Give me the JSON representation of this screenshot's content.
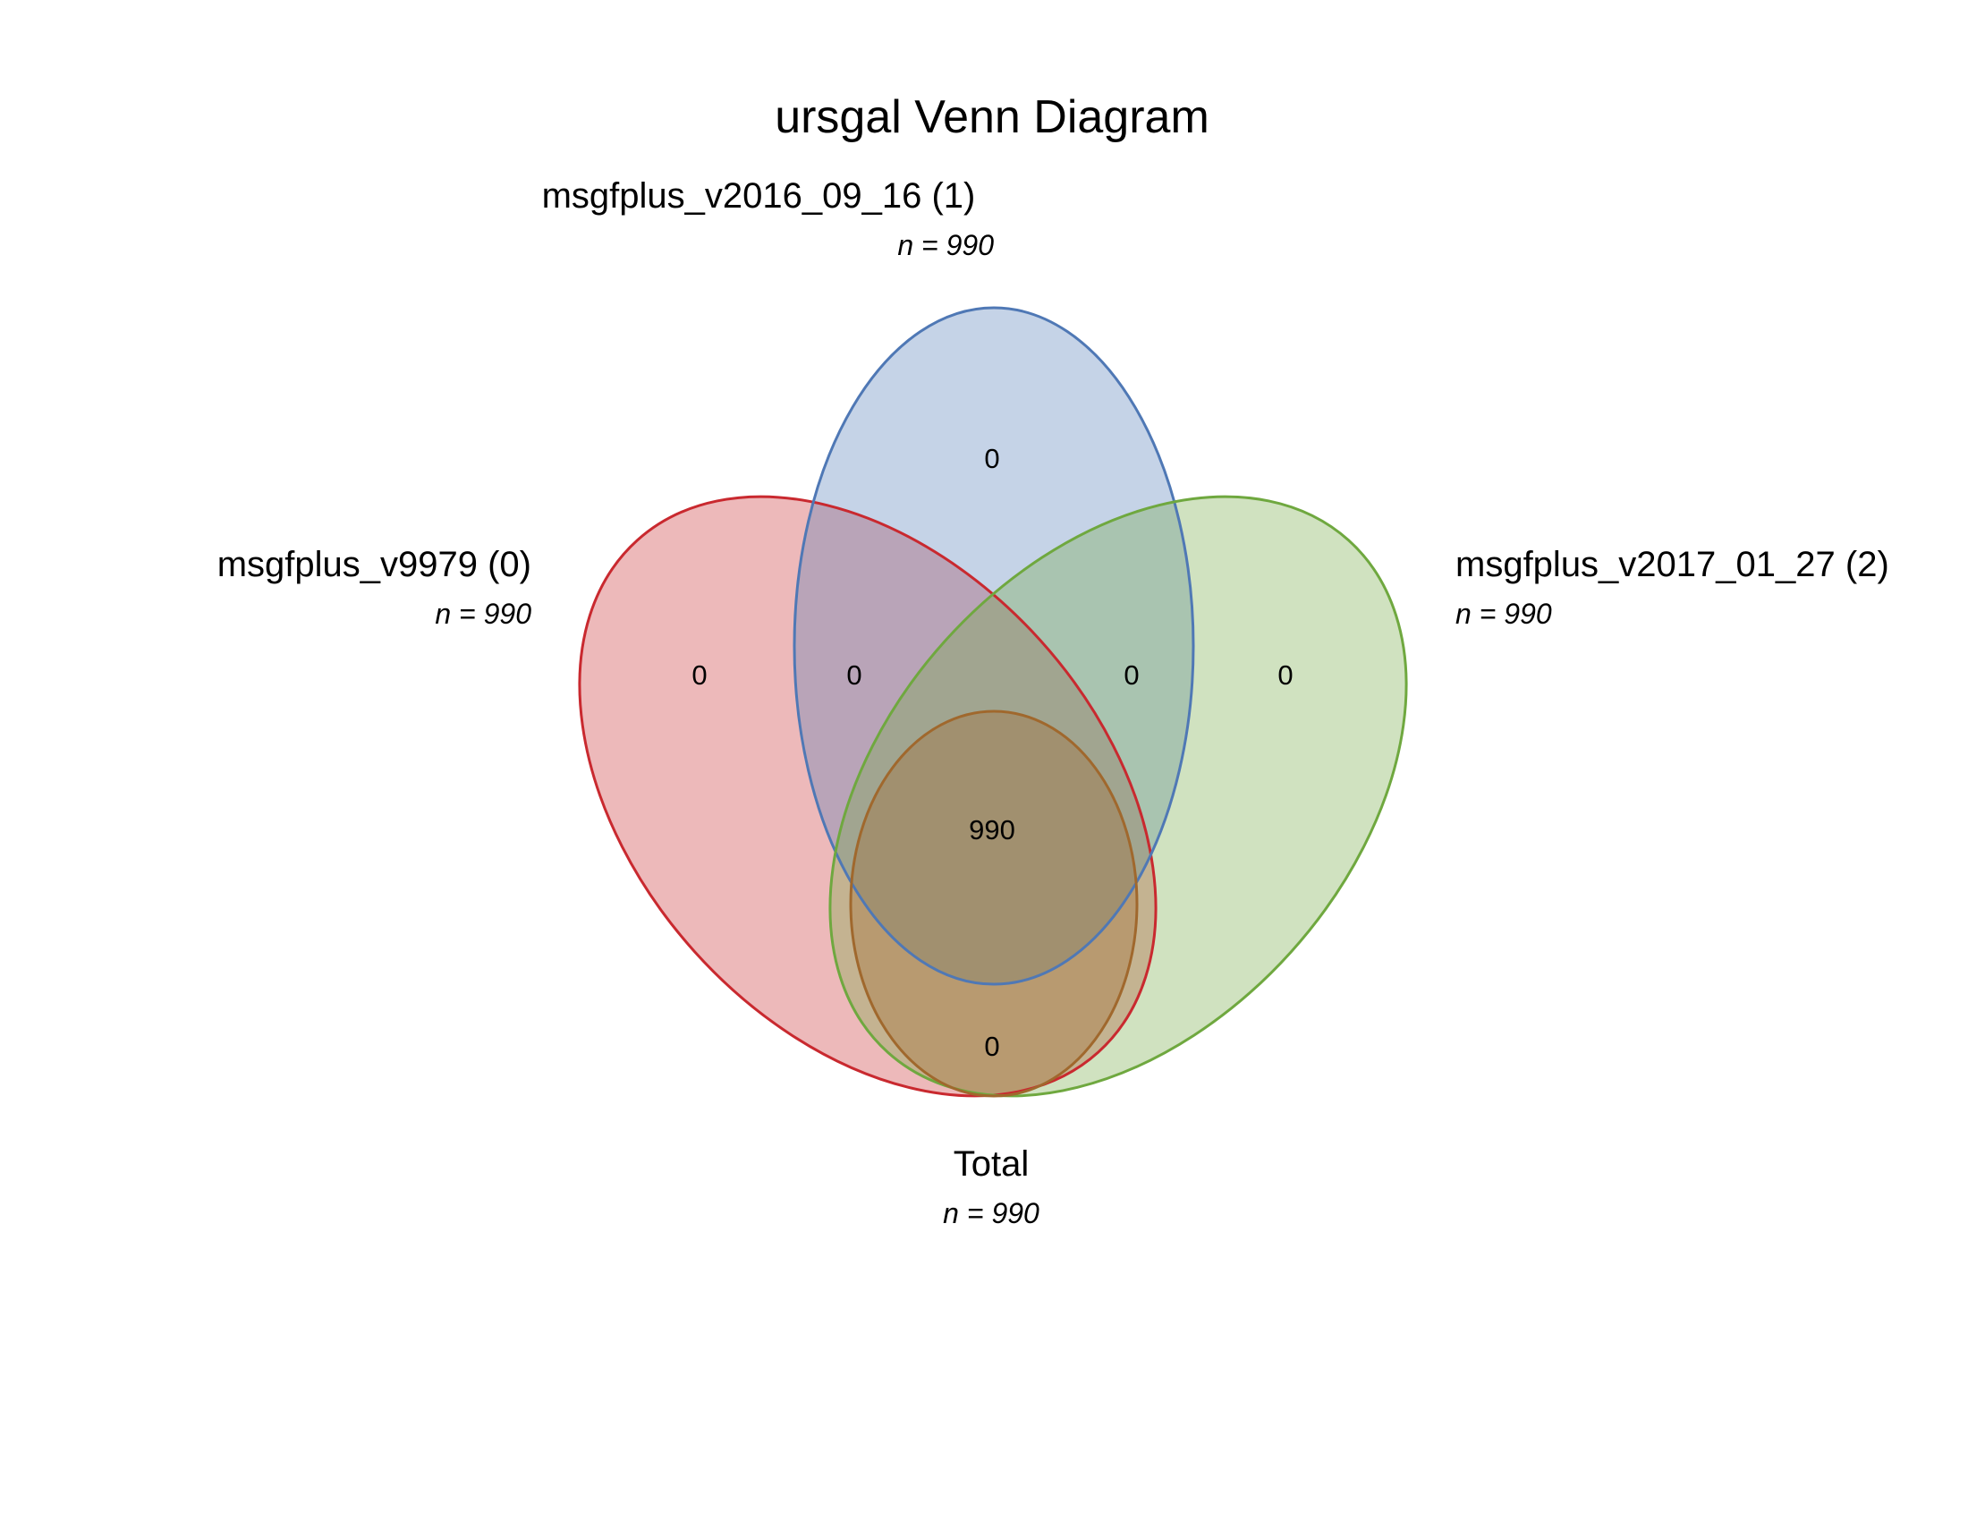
{
  "title": "ursgal Venn Diagram",
  "colors": {
    "set_a": "#c9292f",
    "set_b": "#4f78b5",
    "set_c": "#6fa83f",
    "set_d": "#a0682d"
  },
  "sets": {
    "a": {
      "label": "msgfplus_v9979 (0)",
      "count": "n = 990"
    },
    "b": {
      "label": "msgfplus_v2016_09_16 (1)",
      "count": "n = 990"
    },
    "c": {
      "label": "msgfplus_v2017_01_27 (2)",
      "count": "n = 990"
    },
    "d": {
      "label": "Total",
      "count": "n = 990"
    }
  },
  "regions": {
    "a_only": "0",
    "a_b": "0",
    "b_only": "0",
    "b_c": "0",
    "c_only": "0",
    "all": "990",
    "bottom": "0"
  }
}
